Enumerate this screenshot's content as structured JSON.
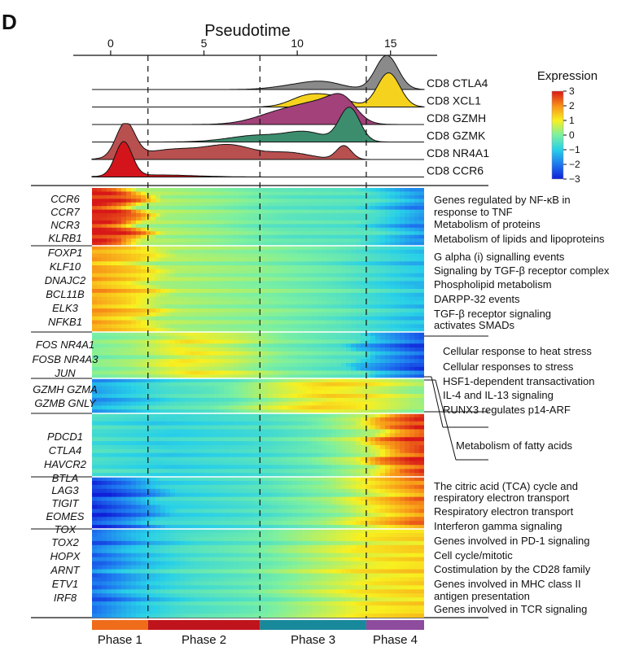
{
  "chart_data": {
    "type": "heatmap",
    "panel_label": "D",
    "title": "Pseudotime",
    "x_axis": {
      "ticks": [
        0,
        5,
        10,
        15
      ],
      "range": [
        -1,
        16.8
      ]
    },
    "phase_boundaries": [
      2.0,
      8.0,
      13.7
    ],
    "phases": [
      {
        "name": "Phase 1",
        "start": -1,
        "end": 2.0,
        "color": "#ef6c1a"
      },
      {
        "name": "Phase 2",
        "start": 2.0,
        "end": 8.0,
        "color": "#c0141c"
      },
      {
        "name": "Phase 3",
        "start": 8.0,
        "end": 13.7,
        "color": "#17899b"
      },
      {
        "name": "Phase 4",
        "start": 13.7,
        "end": 16.8,
        "color": "#8e4c9e"
      }
    ],
    "density_tracks": [
      {
        "label": "CD8 CTLA4",
        "color": "#8a8a8a",
        "peaks": [
          [
            10.0,
            1.2,
            0.12
          ],
          [
            11.5,
            1.0,
            0.18
          ],
          [
            14.8,
            0.6,
            1.0
          ]
        ]
      },
      {
        "label": "CD8 XCL1",
        "color": "#f5d21e",
        "peaks": [
          [
            10.5,
            0.9,
            0.3
          ],
          [
            12.0,
            0.9,
            0.25
          ],
          [
            14.9,
            0.6,
            1.0
          ]
        ]
      },
      {
        "label": "CD8 GZMH",
        "color": "#a2417a",
        "peaks": [
          [
            9.5,
            1.5,
            0.42
          ],
          [
            11.5,
            1.1,
            0.45
          ],
          [
            12.5,
            0.7,
            0.5
          ]
        ]
      },
      {
        "label": "CD8 GZMK",
        "color": "#3c8d6e",
        "peaks": [
          [
            8.0,
            1.6,
            0.2
          ],
          [
            10.5,
            1.0,
            0.25
          ],
          [
            12.8,
            0.55,
            1.0
          ]
        ]
      },
      {
        "label": "CD8 NR4A1",
        "color": "#b85050",
        "peaks": [
          [
            0.8,
            0.5,
            1.0
          ],
          [
            3.5,
            1.8,
            0.3
          ],
          [
            6.5,
            1.2,
            0.35
          ],
          [
            9.5,
            1.2,
            0.2
          ],
          [
            12.5,
            0.4,
            0.4
          ]
        ]
      },
      {
        "label": "CD8 CCR6",
        "color": "#d3141b",
        "peaks": [
          [
            0.7,
            0.45,
            1.0
          ],
          [
            2.5,
            2.0,
            0.06
          ]
        ]
      }
    ],
    "legend": {
      "title": "Expression",
      "ticks": [
        3,
        2,
        1,
        0,
        -1,
        -2,
        -3
      ],
      "tick_labels": [
        "3",
        "2",
        "1",
        "0",
        "−1",
        "−2",
        "−3"
      ],
      "colorscale": [
        "#1020d8",
        "#1e78f0",
        "#28d0e8",
        "#7cf0a0",
        "#f8f020",
        "#f89018",
        "#d81818"
      ]
    },
    "heatmap_row_blocks": [
      {
        "genes": [
          "CCR6",
          "CCR7",
          "NCR3",
          "KLRB1"
        ],
        "pattern": "high in Phase 1, decreasing over pseudotime",
        "profile": [
          [
            -1,
            3
          ],
          [
            0,
            2.8
          ],
          [
            1.0,
            2.2
          ],
          [
            2.2,
            0.4
          ],
          [
            6,
            0.1
          ],
          [
            9,
            -0.3
          ],
          [
            13.7,
            -0.5
          ],
          [
            16.8,
            -1.8
          ]
        ],
        "rows": 16
      },
      {
        "genes": [
          "FOXP1",
          "KLF10",
          "DNAJC2",
          "BCL11B",
          "ELK3",
          "NFKB1"
        ],
        "pattern": "high in Phase 1 and Phase 2",
        "profile": [
          [
            -1,
            1.8
          ],
          [
            1.5,
            1.2
          ],
          [
            3,
            0.4
          ],
          [
            8,
            0.1
          ],
          [
            12,
            -0.3
          ],
          [
            13.7,
            -0.6
          ],
          [
            16.8,
            -1.2
          ]
        ],
        "rows": 22
      },
      {
        "genes": [
          "FOS",
          "NR4A1",
          "FOSB",
          "NR4A3",
          "JUN"
        ],
        "pattern": "high in Phase 2",
        "profile": [
          [
            -1,
            0.0
          ],
          [
            1.5,
            0.3
          ],
          [
            4,
            1.0
          ],
          [
            6.5,
            0.6
          ],
          [
            9,
            0.0
          ],
          [
            13,
            -0.5
          ],
          [
            13.7,
            -1.2
          ],
          [
            16.8,
            -2.5
          ]
        ],
        "rows": 12
      },
      {
        "genes": [
          "GZMH",
          "GZMA",
          "GZMB",
          "GNLY"
        ],
        "pattern": "high in Phase 3",
        "profile": [
          [
            -1,
            -1.6
          ],
          [
            1.5,
            -1.0
          ],
          [
            3,
            -0.6
          ],
          [
            6,
            -0.3
          ],
          [
            9,
            0.6
          ],
          [
            11.5,
            1.2
          ],
          [
            13.5,
            1.0
          ],
          [
            16.8,
            0.2
          ]
        ],
        "rows": 9
      },
      {
        "genes": [
          "PDCD1",
          "CTLA4",
          "HAVCR2",
          "BTLA"
        ],
        "pattern": "high in Phase 4",
        "profile": [
          [
            -1,
            -0.6
          ],
          [
            3,
            -0.9
          ],
          [
            8,
            -0.6
          ],
          [
            11,
            -0.2
          ],
          [
            13.7,
            0.6
          ],
          [
            15,
            2.0
          ],
          [
            16.8,
            2.8
          ]
        ],
        "rows": 16
      },
      {
        "genes": [
          "LAG3",
          "TIGIT",
          "EOMES",
          "TOX"
        ],
        "pattern": "low in Phase 1, high in Phase 4",
        "profile": [
          [
            -1,
            -2.8
          ],
          [
            1.5,
            -1.8
          ],
          [
            3,
            -0.9
          ],
          [
            8,
            -0.5
          ],
          [
            12,
            0.2
          ],
          [
            13.7,
            0.9
          ],
          [
            16.8,
            2.2
          ]
        ],
        "rows": 13
      },
      {
        "genes": [
          "TOX2",
          "HOPX",
          "ARNT",
          "ETV1",
          "IRF8"
        ],
        "pattern": "low in Phase 1, rising toward Phase 4",
        "profile": [
          [
            -1,
            -2.2
          ],
          [
            1.5,
            -1.2
          ],
          [
            4,
            -0.6
          ],
          [
            8,
            -0.2
          ],
          [
            12,
            0.6
          ],
          [
            13.7,
            1.0
          ],
          [
            16.8,
            1.3
          ]
        ],
        "rows": 22
      }
    ],
    "heatmap_gene_label_lines": [
      {
        "block": 0,
        "lines": [
          "CCR6",
          "CCR7",
          "NCR3",
          "KLRB1"
        ]
      },
      {
        "block": 1,
        "lines": [
          "FOXP1",
          "KLF10",
          "DNAJC2",
          "BCL11B",
          "ELK3",
          "NFKB1"
        ]
      },
      {
        "block": 2,
        "lines": [
          "FOS  NR4A1",
          "FOSB NR4A3",
          "JUN"
        ]
      },
      {
        "block": 3,
        "lines": [
          "GZMH  GZMA",
          "GZMB  GNLY"
        ]
      },
      {
        "block": 4,
        "lines": [
          "PDCD1",
          "CTLA4",
          "HAVCR2",
          "BTLA"
        ]
      },
      {
        "block": 5,
        "lines": [
          "LAG3",
          "TIGIT",
          "EOMES",
          "TOX"
        ]
      },
      {
        "block": 6,
        "lines": [
          "TOX2",
          "HOPX",
          "ARNT",
          "ETV1",
          "IRF8"
        ]
      }
    ],
    "pathway_annotations": [
      {
        "block": 0,
        "lines": [
          "Genes regulated by NF-κB in",
          "response to TNF"
        ]
      },
      {
        "block": 0,
        "lines": [
          "Metabolism of proteins"
        ]
      },
      {
        "block": 0,
        "lines": [
          "Metabolism of lipids and lipoproteins"
        ]
      },
      {
        "block": 1,
        "lines": [
          "G alpha (i) signalling events"
        ]
      },
      {
        "block": 1,
        "lines": [
          "Signaling by TGF-β receptor complex"
        ]
      },
      {
        "block": 1,
        "lines": [
          "Phospholipid metabolism"
        ]
      },
      {
        "block": 1,
        "lines": [
          "DARPP-32 events"
        ]
      },
      {
        "block": 1,
        "lines": [
          "TGF-β receptor signaling",
          "activates SMADs"
        ]
      },
      {
        "block": 2,
        "lines": [
          "Cellular response to heat stress"
        ]
      },
      {
        "block": 2,
        "lines": [
          "Cellular responses to stress"
        ]
      },
      {
        "block": 2,
        "lines": [
          "HSF1-dependent transactivation"
        ]
      },
      {
        "block": 3,
        "lines": [
          "IL-4 and IL-13 signaling"
        ]
      },
      {
        "block": 3,
        "lines": [
          "RUNX3 regulates p14-ARF"
        ]
      },
      {
        "block": 4,
        "lines": [
          "Metabolism of fatty acids"
        ]
      },
      {
        "block": 5,
        "lines": [
          "The citric acid (TCA) cycle and",
          "respiratory electron transport"
        ]
      },
      {
        "block": 5,
        "lines": [
          "Respiratory electron transport"
        ]
      },
      {
        "block": 5,
        "lines": [
          "Interferon gamma signaling"
        ]
      },
      {
        "block": 6,
        "lines": [
          "Genes involved in PD-1 signaling"
        ]
      },
      {
        "block": 6,
        "lines": [
          "Cell cycle/mitotic"
        ]
      },
      {
        "block": 6,
        "lines": [
          "Costimulation by the CD28 family"
        ]
      },
      {
        "block": 6,
        "lines": [
          "Genes involved in MHC class II",
          "antigen presentation"
        ]
      },
      {
        "block": 6,
        "lines": [
          "Genes involved in TCR signaling"
        ]
      }
    ]
  }
}
